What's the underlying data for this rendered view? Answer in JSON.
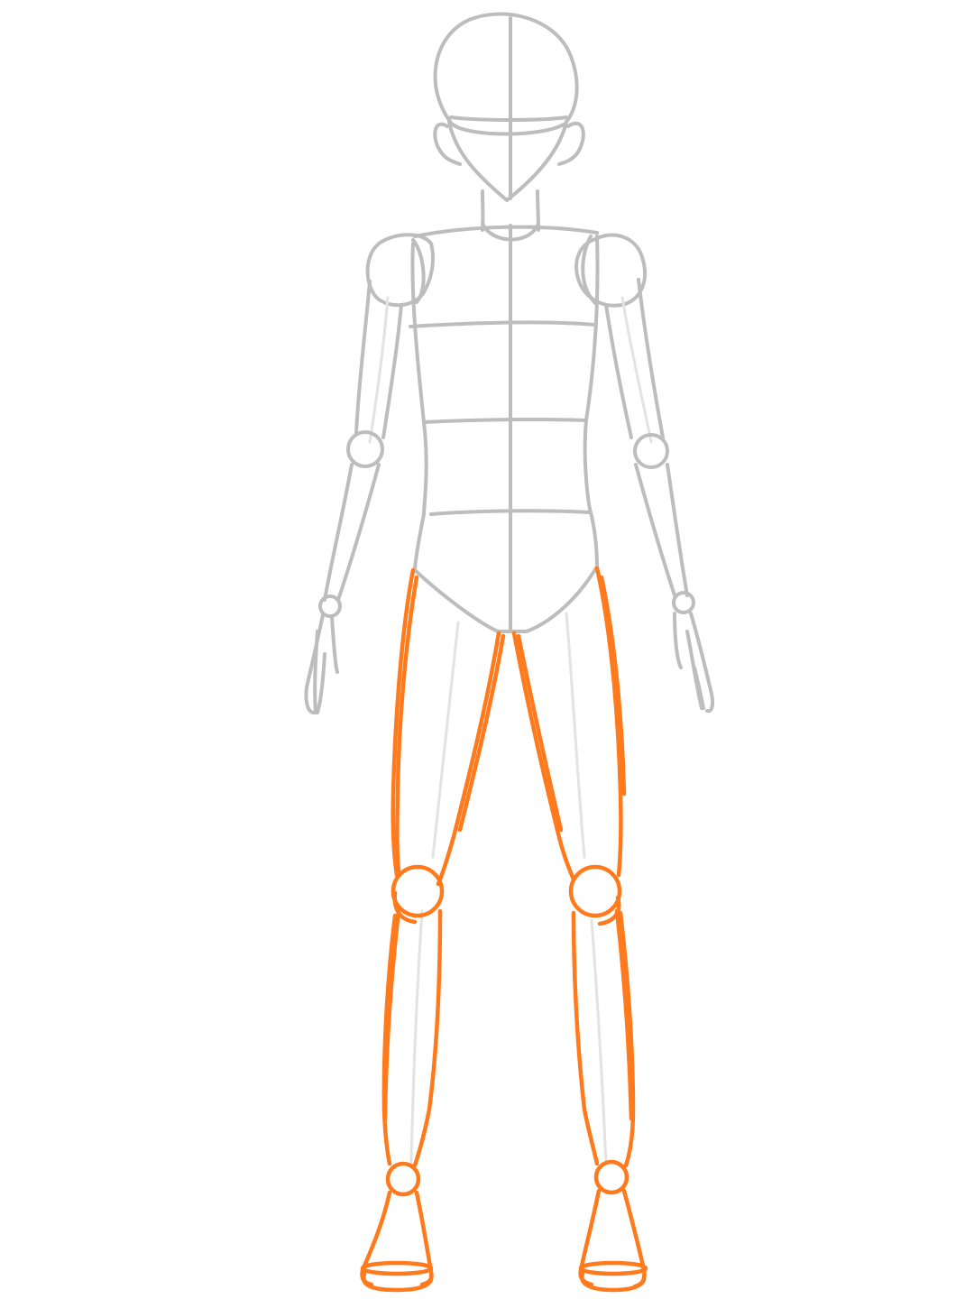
{
  "figure": {
    "subject": "figure-sketch",
    "colors": {
      "background": "#ffffff",
      "guide": "#bdbdbd",
      "guide_faint": "#e3e3e3",
      "highlight": "#ff7a1c"
    }
  }
}
